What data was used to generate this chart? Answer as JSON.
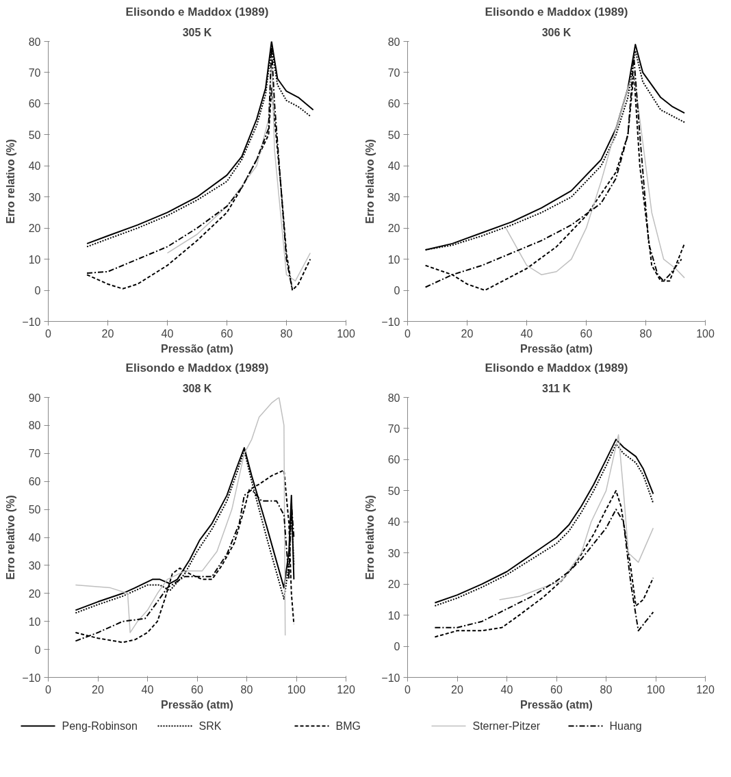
{
  "chart_data": [
    {
      "type": "line",
      "title": "Elisondo e Maddox (1989)",
      "subtitle": "305 K",
      "xlabel": "Pressão (atm)",
      "ylabel": "Erro relativo (%)",
      "xlim": [
        0,
        100
      ],
      "ylim": [
        -10,
        80
      ],
      "xticks": [
        0,
        20,
        40,
        60,
        80,
        100
      ],
      "yticks": [
        -10,
        0,
        10,
        20,
        30,
        40,
        50,
        60,
        70,
        80
      ],
      "grid": false,
      "marker": "none",
      "series": [
        {
          "color": "#000000",
          "line_style": "solid",
          "x": [
            13,
            20,
            30,
            40,
            50,
            60,
            65,
            70,
            73,
            75,
            77,
            80,
            84,
            89
          ],
          "values": [
            15,
            17.5,
            21,
            25,
            30,
            37,
            43,
            55,
            65,
            80,
            68,
            64,
            62,
            58
          ]
        },
        {
          "color": "#000000",
          "line_style": "dotted",
          "x": [
            13,
            20,
            30,
            40,
            50,
            60,
            65,
            70,
            73,
            75,
            77,
            80,
            84,
            88
          ],
          "values": [
            14,
            16.5,
            20,
            24,
            29,
            35,
            42,
            53,
            63,
            78,
            66,
            61,
            59,
            56
          ]
        },
        {
          "color": "#000000",
          "line_style": "dashed",
          "x": [
            13,
            20,
            25,
            30,
            40,
            50,
            60,
            65,
            70,
            74,
            75,
            76,
            78,
            80,
            82,
            84,
            88
          ],
          "values": [
            5,
            2,
            0.5,
            2,
            8,
            16,
            25,
            33,
            42,
            50,
            65,
            55,
            35,
            12,
            0,
            2,
            10
          ]
        },
        {
          "color": "#bfbfbf",
          "line_style": "solid",
          "x": [
            40,
            50,
            60,
            70,
            74,
            75,
            76,
            80,
            83,
            88
          ],
          "values": [
            12,
            18,
            27,
            40,
            55,
            75,
            45,
            5,
            3,
            12
          ]
        },
        {
          "color": "#000000",
          "line_style": "dashdot",
          "x": [
            13,
            20,
            30,
            40,
            50,
            60,
            65,
            70,
            74,
            75,
            76,
            78,
            80,
            82
          ],
          "values": [
            5.5,
            6,
            10,
            14,
            20,
            27,
            33,
            42,
            52,
            78,
            60,
            35,
            10,
            0
          ]
        }
      ]
    },
    {
      "type": "line",
      "title": "Elisondo e Maddox (1989)",
      "subtitle": "306 K",
      "xlabel": "Pressão (atm)",
      "ylabel": "Erro relativo (%)",
      "xlim": [
        0,
        100
      ],
      "ylim": [
        -10,
        80
      ],
      "xticks": [
        0,
        20,
        40,
        60,
        80,
        100
      ],
      "yticks": [
        -10,
        0,
        10,
        20,
        30,
        40,
        50,
        60,
        70,
        80
      ],
      "grid": false,
      "marker": "none",
      "series": [
        {
          "color": "#000000",
          "line_style": "solid",
          "x": [
            6,
            15,
            25,
            35,
            45,
            55,
            65,
            70,
            74,
            76.5,
            79,
            85,
            89,
            93
          ],
          "values": [
            13,
            15,
            18.5,
            22,
            26.5,
            32,
            42,
            52,
            65,
            79,
            70,
            62,
            59,
            57
          ]
        },
        {
          "color": "#000000",
          "line_style": "dotted",
          "x": [
            6,
            15,
            25,
            35,
            45,
            55,
            65,
            70,
            74,
            76.5,
            79,
            85,
            89,
            93
          ],
          "values": [
            13,
            14.5,
            17.5,
            21,
            25,
            30,
            40,
            50,
            62,
            77,
            67,
            58,
            56,
            54
          ]
        },
        {
          "color": "#000000",
          "line_style": "dashed",
          "x": [
            6,
            15,
            20,
            26,
            30,
            40,
            50,
            60,
            70,
            74,
            76,
            78,
            82,
            85,
            88,
            93
          ],
          "values": [
            8,
            5,
            2,
            0,
            2,
            7,
            14,
            24,
            38,
            50,
            70,
            40,
            8,
            3,
            3,
            15
          ]
        },
        {
          "color": "#bfbfbf",
          "line_style": "solid",
          "x": [
            33,
            40,
            45,
            50,
            55,
            60,
            65,
            70,
            74,
            76,
            78,
            82,
            86,
            90,
            93
          ],
          "values": [
            20,
            8,
            5,
            6,
            10,
            20,
            35,
            52,
            65,
            70,
            55,
            25,
            10,
            7,
            4
          ]
        },
        {
          "color": "#000000",
          "line_style": "dashdot",
          "x": [
            6,
            15,
            25,
            35,
            45,
            55,
            65,
            70,
            74,
            76,
            78,
            81,
            84,
            86,
            88,
            92
          ],
          "values": [
            1,
            5,
            8,
            12,
            16,
            21,
            28,
            36,
            50,
            75,
            50,
            15,
            5,
            3,
            5,
            10
          ]
        }
      ]
    },
    {
      "type": "line",
      "title": "Elisondo e Maddox (1989)",
      "subtitle": "308 K",
      "xlabel": "Pressão (atm)",
      "ylabel": "Erro relativo (%)",
      "xlim": [
        0,
        120
      ],
      "ylim": [
        -10,
        90
      ],
      "xticks": [
        0,
        20,
        40,
        60,
        80,
        100,
        120
      ],
      "yticks": [
        -10,
        0,
        10,
        20,
        30,
        40,
        50,
        60,
        70,
        80,
        90
      ],
      "grid": false,
      "marker": "none",
      "series": [
        {
          "color": "#000000",
          "line_style": "solid",
          "x": [
            11,
            20,
            30,
            35,
            42,
            45,
            49,
            52,
            57,
            61,
            66,
            72,
            76,
            79,
            82,
            88,
            95,
            97,
            98,
            99
          ],
          "values": [
            14,
            17,
            20,
            22,
            25,
            25,
            23.5,
            25,
            32,
            39,
            45,
            55,
            65,
            72,
            62,
            44,
            22,
            35,
            55,
            25
          ]
        },
        {
          "color": "#000000",
          "line_style": "dotted",
          "x": [
            11,
            20,
            30,
            40,
            45,
            49,
            55,
            60,
            66,
            72,
            76,
            79,
            82,
            88,
            95,
            97,
            98,
            99
          ],
          "values": [
            13,
            16,
            19,
            23,
            23,
            21,
            27,
            35,
            43,
            53,
            63,
            71,
            60,
            40,
            18,
            30,
            50,
            30
          ]
        },
        {
          "color": "#000000",
          "line_style": "dashed",
          "x": [
            11,
            20,
            30,
            35,
            40,
            44,
            47,
            50,
            53,
            57,
            62,
            66,
            70,
            75,
            79,
            81,
            85,
            90,
            95,
            97,
            98,
            99
          ],
          "values": [
            6,
            4,
            2.5,
            3.5,
            6,
            10,
            18,
            27,
            29,
            27,
            25,
            25,
            30,
            38,
            50,
            57,
            59,
            62,
            64,
            45,
            20,
            9
          ]
        },
        {
          "color": "#bfbfbf",
          "line_style": "solid",
          "x": [
            11,
            25,
            32,
            33,
            36,
            40,
            44,
            48,
            55,
            62,
            68,
            74,
            79,
            82,
            85,
            90,
            93,
            95,
            95.5
          ],
          "values": [
            23,
            22,
            20,
            6,
            10,
            14,
            20,
            25,
            28,
            28,
            35,
            50,
            70,
            75,
            83,
            88,
            90,
            80,
            5
          ]
        },
        {
          "color": "#000000",
          "line_style": "dashdot",
          "x": [
            11,
            20,
            30,
            39,
            44,
            48,
            55,
            62,
            66,
            72,
            77,
            79,
            82,
            86,
            92,
            95,
            97,
            98,
            99
          ],
          "values": [
            3,
            6,
            10,
            11,
            17,
            22,
            26,
            26,
            26,
            34,
            45,
            55,
            57,
            53,
            53,
            48,
            25,
            52,
            40
          ]
        }
      ]
    },
    {
      "type": "line",
      "title": "Elisondo e Maddox (1989)",
      "subtitle": "311 K",
      "xlabel": "Pressão (atm)",
      "ylabel": "Erro relativo (%)",
      "xlim": [
        0,
        120
      ],
      "ylim": [
        -10,
        80
      ],
      "xticks": [
        0,
        20,
        40,
        60,
        80,
        100,
        120
      ],
      "yticks": [
        -10,
        0,
        10,
        20,
        30,
        40,
        50,
        60,
        70,
        80
      ],
      "grid": false,
      "legend": "bottom",
      "marker": "none",
      "series": [
        {
          "name": "Peng-Robinson",
          "color": "#000000",
          "line_style": "solid",
          "x": [
            11,
            20,
            30,
            40,
            50,
            60,
            65,
            70,
            75,
            80,
            84,
            87,
            92,
            95,
            99
          ],
          "values": [
            14,
            16.5,
            20,
            24,
            29.5,
            35,
            39,
            45,
            52,
            60,
            66.5,
            64,
            61,
            57,
            49
          ]
        },
        {
          "name": "SRK",
          "color": "#000000",
          "line_style": "dotted",
          "x": [
            11,
            20,
            30,
            40,
            50,
            60,
            65,
            70,
            75,
            80,
            84,
            87,
            92,
            95,
            99
          ],
          "values": [
            13,
            15.5,
            19,
            23,
            28,
            33,
            37,
            43,
            50,
            58,
            65,
            62,
            59,
            55,
            46
          ]
        },
        {
          "name": "BMG",
          "color": "#000000",
          "line_style": "dashed",
          "x": [
            11,
            20,
            30,
            38,
            45,
            55,
            62,
            68,
            75,
            80,
            84,
            86,
            90,
            92,
            95,
            99
          ],
          "values": [
            3,
            5,
            5,
            6,
            10,
            16,
            21,
            27,
            36,
            44,
            50,
            45,
            25,
            13,
            15,
            22
          ]
        },
        {
          "name": "Sterner-Pitzer",
          "color": "#bfbfbf",
          "line_style": "solid",
          "x": [
            37,
            45,
            55,
            62,
            70,
            74,
            80,
            85,
            87,
            89,
            93,
            99
          ],
          "values": [
            15,
            16,
            19,
            21,
            30,
            40,
            50,
            68,
            50,
            30,
            27,
            38
          ]
        },
        {
          "name": "Huang",
          "color": "#000000",
          "line_style": "dashdot",
          "x": [
            11,
            20,
            30,
            40,
            50,
            60,
            65,
            70,
            75,
            80,
            84,
            87,
            90,
            93,
            96,
            99
          ],
          "values": [
            6,
            6,
            8,
            12,
            16,
            21,
            24,
            28,
            33,
            38,
            44,
            40,
            20,
            5,
            8,
            11
          ]
        }
      ]
    }
  ]
}
